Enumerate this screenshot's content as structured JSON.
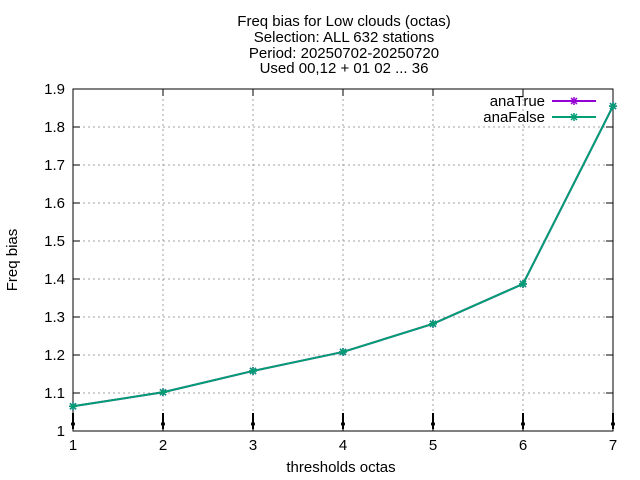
{
  "chart_data": {
    "type": "line",
    "title_lines": [
      "Freq bias  for Low clouds (octas)",
      "Selection: ALL    632 stations",
      "Period: 20250702-20250720",
      "Used 00,12 + 01 02 ... 36"
    ],
    "xlabel": "thresholds octas",
    "ylabel": "Freq bias",
    "x": [
      1,
      2,
      3,
      4,
      5,
      6,
      7
    ],
    "xlim": [
      1,
      7
    ],
    "ylim": [
      1,
      1.9
    ],
    "xticks": [
      "1",
      "2",
      "3",
      "4",
      "5",
      "6",
      "7"
    ],
    "yticks": [
      "1",
      "1.1",
      "1.2",
      "1.3",
      "1.4",
      "1.5",
      "1.6",
      "1.7",
      "1.8",
      "1.9"
    ],
    "grid": true,
    "legend_position": "top-right",
    "series": [
      {
        "name": "anaTrue",
        "color": "#9400d3",
        "values": [
          1.065,
          1.102,
          1.158,
          1.208,
          1.282,
          1.387,
          1.855
        ]
      },
      {
        "name": "anaFalse",
        "color": "#009e73",
        "values": [
          1.065,
          1.102,
          1.158,
          1.208,
          1.282,
          1.387,
          1.855
        ]
      }
    ]
  }
}
